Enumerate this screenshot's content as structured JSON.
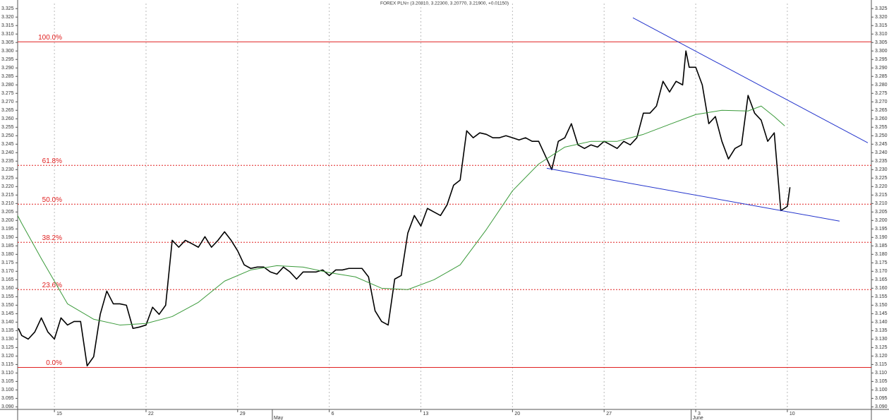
{
  "chart_data": {
    "type": "line",
    "title": "FOREX PLN= (3.20810, 3.22300, 3.20770, 3.21900, +0.01150)",
    "xlim": [
      12.19,
      77.42
    ],
    "ylim": [
      3.0885,
      3.328
    ],
    "xticks": [
      15,
      22,
      29,
      {
        "value": 36,
        "label": "6"
      },
      {
        "value": 43,
        "label": "13"
      },
      {
        "value": 50,
        "label": "20"
      },
      {
        "value": 57,
        "label": "27"
      },
      {
        "value": 64,
        "label": "3"
      },
      {
        "value": 71,
        "label": "10"
      }
    ],
    "month_ticks": [
      {
        "value": 31.65,
        "label": "May"
      },
      {
        "value": 63.65,
        "label": "June"
      }
    ],
    "yticks": [
      {
        "value": 3.09,
        "label": "3.090"
      },
      3.095,
      {
        "value": 3.1,
        "label": "3.100"
      },
      3.105,
      {
        "value": 3.11,
        "label": "3.110"
      },
      3.115,
      {
        "value": 3.12,
        "label": "3.120"
      },
      3.125,
      {
        "value": 3.13,
        "label": "3.130"
      },
      3.135,
      {
        "value": 3.14,
        "label": "3.140"
      },
      3.145,
      {
        "value": 3.15,
        "label": "3.150"
      },
      3.155,
      {
        "value": 3.16,
        "label": "3.160"
      },
      3.165,
      {
        "value": 3.17,
        "label": "3.170"
      },
      3.175,
      {
        "value": 3.18,
        "label": "3.180"
      },
      3.185,
      {
        "value": 3.19,
        "label": "3.190"
      },
      3.195,
      {
        "value": 3.2,
        "label": "3.200"
      },
      3.205,
      {
        "value": 3.21,
        "label": "3.210"
      },
      3.215,
      {
        "value": 3.22,
        "label": "3.220"
      },
      3.225,
      {
        "value": 3.23,
        "label": "3.230"
      },
      3.235,
      {
        "value": 3.24,
        "label": "3.240"
      },
      3.245,
      {
        "value": 3.25,
        "label": "3.250"
      },
      3.255,
      {
        "value": 3.26,
        "label": "3.260"
      },
      3.265,
      {
        "value": 3.27,
        "label": "3.270"
      },
      3.275,
      {
        "value": 3.28,
        "label": "3.280"
      },
      3.285,
      {
        "value": 3.29,
        "label": "3.290"
      },
      3.295,
      {
        "value": 3.3,
        "label": "3.300"
      },
      3.305,
      {
        "value": 3.31,
        "label": "3.310"
      },
      3.315,
      {
        "value": 3.32,
        "label": "3.320"
      },
      3.325
    ],
    "grid": "x",
    "series": [
      {
        "color": "#000000",
        "width": 1.6,
        "x": [
          12.25,
          12.5,
          13,
          13.5,
          14,
          14.5,
          15,
          15.5,
          16,
          16.5,
          17,
          17.5,
          18,
          18.5,
          19,
          19.5,
          20,
          20.5,
          21,
          21.5,
          22,
          22.5,
          23,
          23.5,
          24,
          24.5,
          25,
          25.5,
          26,
          26.5,
          27,
          27.5,
          28,
          28.5,
          29,
          29.5,
          30,
          30.5,
          31,
          31.5,
          32,
          32.5,
          33,
          33.5,
          34,
          34.5,
          35,
          35.5,
          36,
          36.5,
          37,
          37.5,
          38,
          38.5,
          39,
          39.5,
          40,
          40.5,
          41,
          41.5,
          42,
          42.5,
          43,
          43.5,
          44,
          44.5,
          45,
          45.5,
          46,
          46.5,
          47,
          47.5,
          48,
          48.5,
          49,
          49.5,
          50,
          50.5,
          51,
          51.5,
          52,
          52.5,
          53,
          53.5,
          54,
          54.5,
          55,
          55.5,
          56,
          56.5,
          57,
          57.5,
          58,
          58.5,
          59,
          59.5,
          60,
          60.5,
          61,
          61.5,
          62,
          62.5,
          63,
          63.25,
          63.5,
          64,
          64.5,
          65,
          65.5,
          66,
          66.5,
          67,
          67.5,
          68,
          68.5,
          69,
          69.5,
          70,
          70.5,
          71,
          71.2
        ],
        "values": [
          3.1363,
          3.1321,
          3.13,
          3.1342,
          3.1425,
          3.1342,
          3.13,
          3.1425,
          3.1383,
          3.1404,
          3.1404,
          3.1142,
          3.1196,
          3.1446,
          3.1583,
          3.1508,
          3.1508,
          3.15,
          3.1363,
          3.1371,
          3.1383,
          3.1488,
          3.1446,
          3.15,
          3.1883,
          3.1842,
          3.1883,
          3.1863,
          3.1842,
          3.1904,
          3.1842,
          3.1883,
          3.1933,
          3.1883,
          3.1821,
          3.1738,
          3.1717,
          3.1725,
          3.1725,
          3.1696,
          3.1683,
          3.1725,
          3.1696,
          3.1654,
          3.1696,
          3.1696,
          3.1696,
          3.1708,
          3.1675,
          3.1708,
          3.1708,
          3.1717,
          3.1717,
          3.1717,
          3.1667,
          3.1467,
          3.1404,
          3.1383,
          3.1654,
          3.1675,
          3.1925,
          3.2029,
          3.1967,
          3.2071,
          3.205,
          3.2029,
          3.2092,
          3.2208,
          3.2238,
          3.2529,
          3.2488,
          3.2517,
          3.2508,
          3.2488,
          3.2488,
          3.25,
          3.2488,
          3.2475,
          3.2488,
          3.2467,
          3.2467,
          3.2383,
          3.23,
          3.2467,
          3.2488,
          3.2571,
          3.2446,
          3.2425,
          3.2446,
          3.2433,
          3.2467,
          3.2446,
          3.2425,
          3.2467,
          3.2446,
          3.2488,
          3.2633,
          3.2633,
          3.2675,
          3.2821,
          3.2758,
          3.2821,
          3.28,
          3.3,
          3.2904,
          3.2904,
          3.28,
          3.2571,
          3.2613,
          3.2467,
          3.2363,
          3.2425,
          3.2446,
          3.2738,
          3.2633,
          3.2592,
          3.2467,
          3.2517,
          3.2058,
          3.2083,
          3.2196
        ]
      },
      {
        "color": "#3a9a3a",
        "width": 1,
        "x": [
          12.19,
          12.5,
          14,
          16,
          18,
          20,
          22,
          24,
          26,
          28,
          30,
          32,
          34,
          36,
          38,
          40,
          42,
          44,
          46,
          48,
          50,
          52,
          54,
          56,
          58,
          60,
          62,
          64,
          66,
          68,
          69,
          70,
          70.8
        ],
        "values": [
          3.2029,
          3.1983,
          3.1775,
          3.1508,
          3.1417,
          3.1383,
          3.1392,
          3.1433,
          3.1517,
          3.1642,
          3.1708,
          3.1733,
          3.1725,
          3.1692,
          3.1667,
          3.16,
          3.1592,
          3.165,
          3.1738,
          3.1946,
          3.2175,
          3.2333,
          3.2433,
          3.2467,
          3.2467,
          3.2508,
          3.2567,
          3.2625,
          3.265,
          3.2646,
          3.2675,
          3.2613,
          3.2558
        ]
      }
    ],
    "fib_color": "#e02020",
    "fib_levels": [
      {
        "label": "100.0%",
        "value": 3.3054,
        "style": "solid"
      },
      {
        "label": "61.8%",
        "value": 3.2325,
        "style": "dotted"
      },
      {
        "label": "50.0%",
        "value": 3.2096,
        "style": "dotted"
      },
      {
        "label": "38.2%",
        "value": 3.1871,
        "style": "dotted"
      },
      {
        "label": "23.6%",
        "value": 3.1592,
        "style": "dotted"
      },
      {
        "label": "0.0%",
        "value": 3.1133,
        "style": "solid"
      }
    ],
    "trend_color": "#2233cc",
    "trendlines": [
      {
        "x": [
          59.2,
          77.15
        ],
        "y": [
          3.3196,
          3.2458
        ]
      },
      {
        "x": [
          52.62,
          74.99
        ],
        "y": [
          3.2308,
          3.1996
        ]
      }
    ]
  }
}
